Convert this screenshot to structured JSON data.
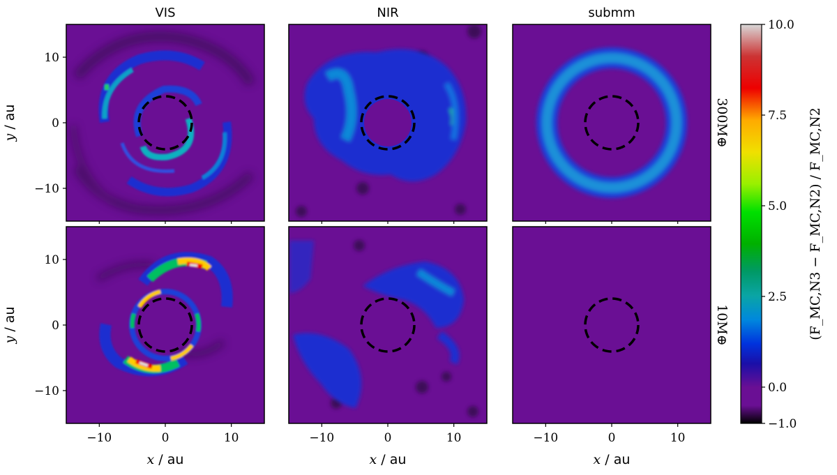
{
  "chart_data": {
    "type": "heatmap",
    "columns": [
      "VIS",
      "NIR",
      "submm"
    ],
    "rows": [
      "300M⊕",
      "10M⊕"
    ],
    "x_ticks": [
      -10,
      0,
      10
    ],
    "y_ticks": [
      -10,
      0,
      10
    ],
    "xlim": [
      -15,
      15
    ],
    "ylim": [
      -15,
      15
    ],
    "xlabel_var": "x",
    "ylabel_var": "y",
    "unit": " / au",
    "inner_circle_radius_au": 4,
    "colorbar": {
      "label": "(F_MC,N3 − F_MC,N2) / F_MC,N2",
      "ticks": [
        "−1.0",
        "0.0",
        "2.5",
        "5.0",
        "7.5",
        "10.0"
      ],
      "tick_values": [
        -1.0,
        0.0,
        2.5,
        5.0,
        7.5,
        10.0
      ],
      "range": [
        -1.0,
        10.0
      ],
      "colormap": "nipy_spectral"
    },
    "background_color": "#6a0f94",
    "panels": [
      {
        "row": "300M⊕",
        "column": "VIS",
        "structure": "two spiral arms with blue/cyan values 1–3.5, max ≈ 3.5 near x=-9, y=5"
      },
      {
        "row": "300M⊕",
        "column": "NIR",
        "structure": "irregular blue ring r≈4–12 au, values 1–3.5"
      },
      {
        "row": "300M⊕",
        "column": "submm",
        "structure": "smooth ring r≈9–10 au, value ≈ 2.5"
      },
      {
        "row": "10M⊕",
        "column": "VIS",
        "structure": "two crescents r≈5–8 au, values up to 10"
      },
      {
        "row": "10M⊕",
        "column": "NIR",
        "structure": "patchy blue features, values 0.5–2.5"
      },
      {
        "row": "10M⊕",
        "column": "submm",
        "structure": "uniform ≈ 0"
      }
    ]
  }
}
